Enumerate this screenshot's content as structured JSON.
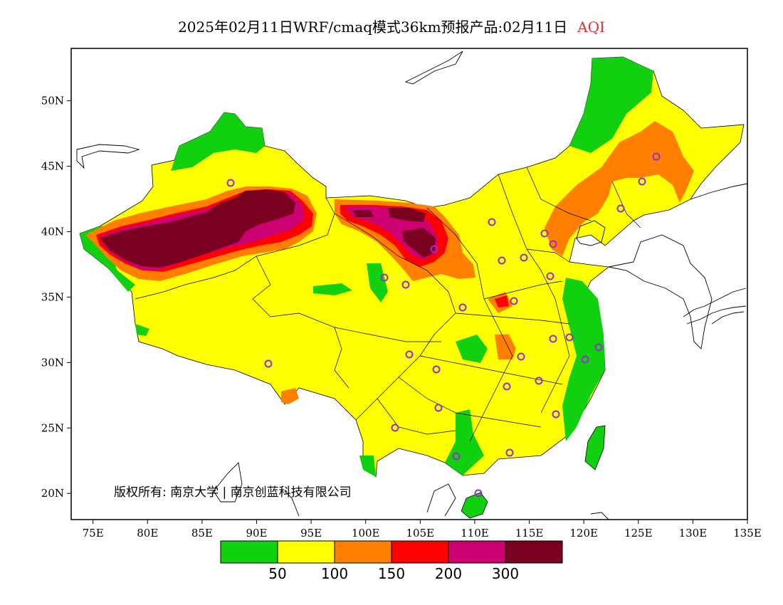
{
  "title": {
    "text": "2025年02月11日WRF/cmaq模式36km预报产品:02月11日",
    "accent": "AQI",
    "accent_color": "#e03030"
  },
  "chart_data": {
    "type": "heatmap",
    "x_ticks": [
      "75E",
      "80E",
      "85E",
      "90E",
      "95E",
      "100E",
      "105E",
      "110E",
      "115E",
      "120E",
      "125E",
      "130E",
      "135E"
    ],
    "y_ticks": [
      "50N",
      "45N",
      "40N",
      "35N",
      "30N",
      "25N",
      "20N"
    ],
    "xlim": [
      73,
      135
    ],
    "ylim": [
      18,
      54
    ],
    "colorbar": {
      "labels": [
        "50",
        "100",
        "150",
        "200",
        "300"
      ],
      "colors": [
        "#10d010",
        "#ffff00",
        "#ff8000",
        "#ff0000",
        "#cc0070",
        "#7a0020"
      ]
    }
  },
  "copyright": "版权所有: 南京大学 | 南京创蓝科技有限公司"
}
